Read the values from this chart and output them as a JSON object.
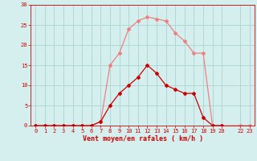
{
  "light_x": [
    0,
    1,
    2,
    3,
    4,
    5,
    6,
    7,
    8,
    9,
    10,
    11,
    12,
    13,
    14,
    15,
    16,
    17,
    18,
    19,
    20,
    22,
    23
  ],
  "light_y": [
    0,
    0,
    0,
    0,
    0,
    0,
    0,
    1,
    15,
    18,
    24,
    26,
    27,
    26.5,
    26,
    23,
    21,
    18,
    18,
    0,
    0,
    0,
    0
  ],
  "dark_x": [
    0,
    1,
    2,
    3,
    4,
    5,
    6,
    7,
    8,
    9,
    10,
    11,
    12,
    13,
    14,
    15,
    16,
    17,
    18,
    19,
    20
  ],
  "dark_y": [
    0,
    0,
    0,
    0,
    0,
    0,
    0,
    1,
    5,
    8,
    10,
    12,
    15,
    13,
    10,
    9,
    8,
    8,
    2,
    0,
    0
  ],
  "light_color": "#f08080",
  "dark_color": "#cc0000",
  "bg_color": "#d5efef",
  "grid_color": "#aad4d4",
  "xlabel": "Vent moyen/en rafales ( km/h )",
  "xlabel_color": "#cc0000",
  "tick_color": "#cc0000",
  "xlim_min": -0.5,
  "xlim_max": 23.5,
  "ylim_min": 0,
  "ylim_max": 30,
  "yticks": [
    0,
    5,
    10,
    15,
    20,
    25,
    30
  ],
  "xticks": [
    0,
    1,
    2,
    3,
    4,
    5,
    6,
    7,
    8,
    9,
    10,
    11,
    12,
    13,
    14,
    15,
    16,
    17,
    18,
    19,
    20,
    22,
    23
  ],
  "marker": "D",
  "markersize": 2.0,
  "linewidth": 0.9,
  "tick_fontsize": 5.0,
  "xlabel_fontsize": 6.0
}
